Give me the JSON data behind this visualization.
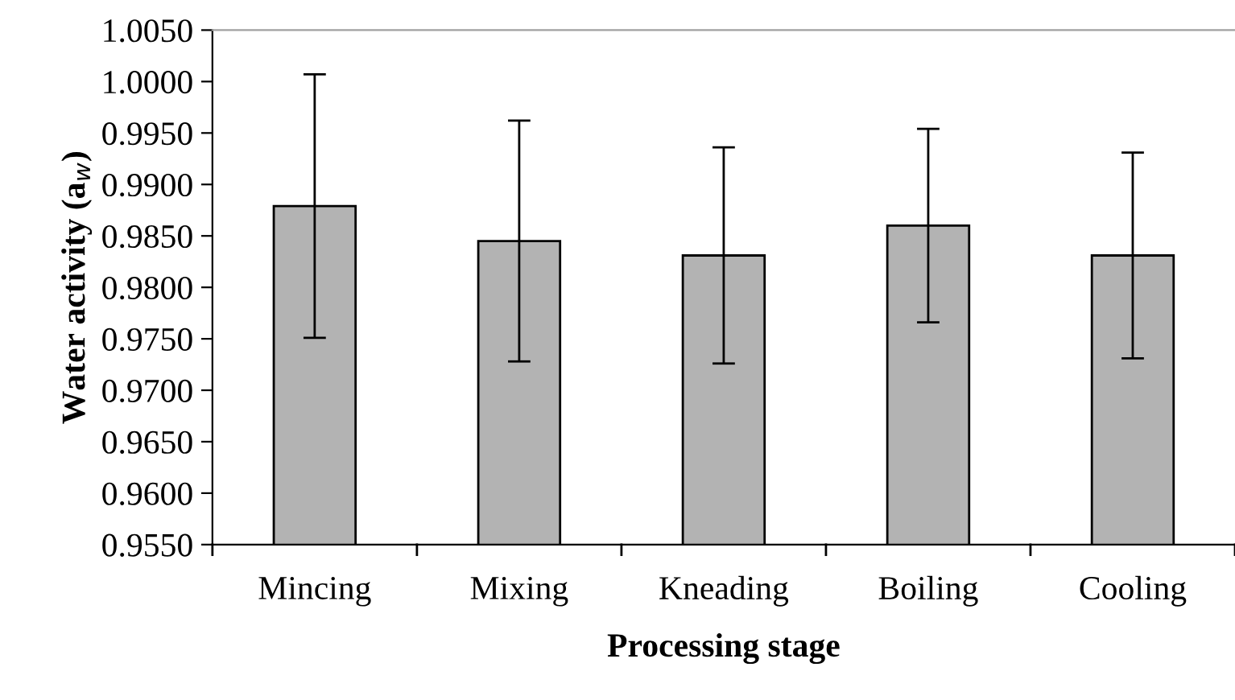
{
  "chart_data": {
    "type": "bar",
    "xlabel": "Processing stage",
    "ylabel": "Water activity (a$_{w}$)",
    "categories": [
      "Mincing",
      "Mixing",
      "Kneading",
      "Boiling",
      "Cooling"
    ],
    "values": [
      0.9879,
      0.9845,
      0.9831,
      0.986,
      0.9831
    ],
    "errors": [
      0.0128,
      0.0117,
      0.0105,
      0.0094,
      0.01
    ],
    "color": "#b3b3b3",
    "ylim": [
      0.955,
      1.005
    ],
    "yticks": [
      {
        "value": 0.955,
        "label": "0.9550"
      },
      {
        "value": 0.96,
        "label": "0.9600"
      },
      {
        "value": 0.965,
        "label": "0.9650"
      },
      {
        "value": 0.97,
        "label": "0.9700"
      },
      {
        "value": 0.975,
        "label": "0.9750"
      },
      {
        "value": 0.98,
        "label": "0.9800"
      },
      {
        "value": 0.985,
        "label": "0.9850"
      },
      {
        "value": 0.99,
        "label": "0.9900"
      },
      {
        "value": 0.995,
        "label": "0.9950"
      },
      {
        "value": 1.0,
        "label": "1.0000"
      },
      {
        "value": 1.005,
        "label": "1.0050"
      }
    ],
    "grid": false,
    "legend": false
  }
}
